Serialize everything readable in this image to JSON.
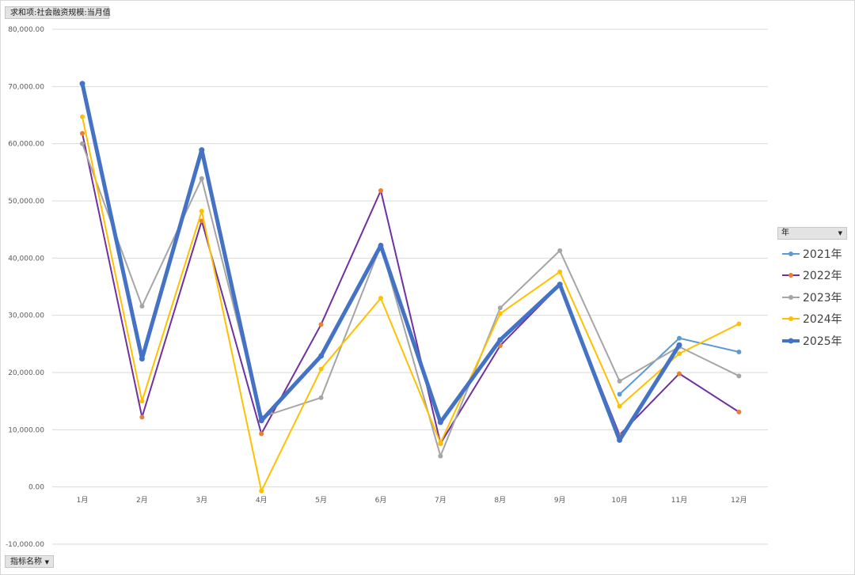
{
  "pivot": {
    "value_field": "求和项:社会融资规模:当月值",
    "category_field": "指标名称",
    "legend_field": "年"
  },
  "chart_data": {
    "type": "line",
    "categories": [
      "1月",
      "2月",
      "3月",
      "4月",
      "5月",
      "6月",
      "7月",
      "8月",
      "9月",
      "10月",
      "11月",
      "12月"
    ],
    "y_ticks": [
      "80,000.00",
      "70,000.00",
      "60,000.00",
      "50,000.00",
      "40,000.00",
      "30,000.00",
      "20,000.00",
      "10,000.00",
      "0.00",
      "-10,000.00"
    ],
    "ylim": [
      -10000,
      80000
    ],
    "grid": true,
    "legend_position": "right",
    "series": [
      {
        "name": "2021年",
        "color": "#5b9bd5",
        "width": 2,
        "values": [
          null,
          null,
          null,
          null,
          null,
          null,
          null,
          null,
          null,
          16200,
          26000,
          23600
        ]
      },
      {
        "name": "2022年",
        "color": "#7030a0",
        "marker": "#ed7d31",
        "width": 2,
        "values": [
          61800,
          12200,
          46500,
          9300,
          28400,
          51800,
          7600,
          24700,
          35300,
          9100,
          19800,
          13100
        ]
      },
      {
        "name": "2023年",
        "color": "#a5a5a5",
        "width": 2,
        "values": [
          60000,
          31600,
          53900,
          12200,
          15600,
          42200,
          5400,
          31300,
          41300,
          18500,
          24500,
          19400
        ]
      },
      {
        "name": "2024年",
        "color": "#ffc000",
        "width": 2,
        "values": [
          64700,
          15000,
          48200,
          -700,
          20600,
          33000,
          7700,
          30300,
          37600,
          14100,
          23300,
          28500
        ]
      },
      {
        "name": "2025年",
        "color": "#4472c4",
        "width": 5,
        "values": [
          70500,
          22400,
          58900,
          11600,
          22900,
          42200,
          11300,
          25700,
          35400,
          8200,
          24800,
          null
        ]
      }
    ]
  }
}
